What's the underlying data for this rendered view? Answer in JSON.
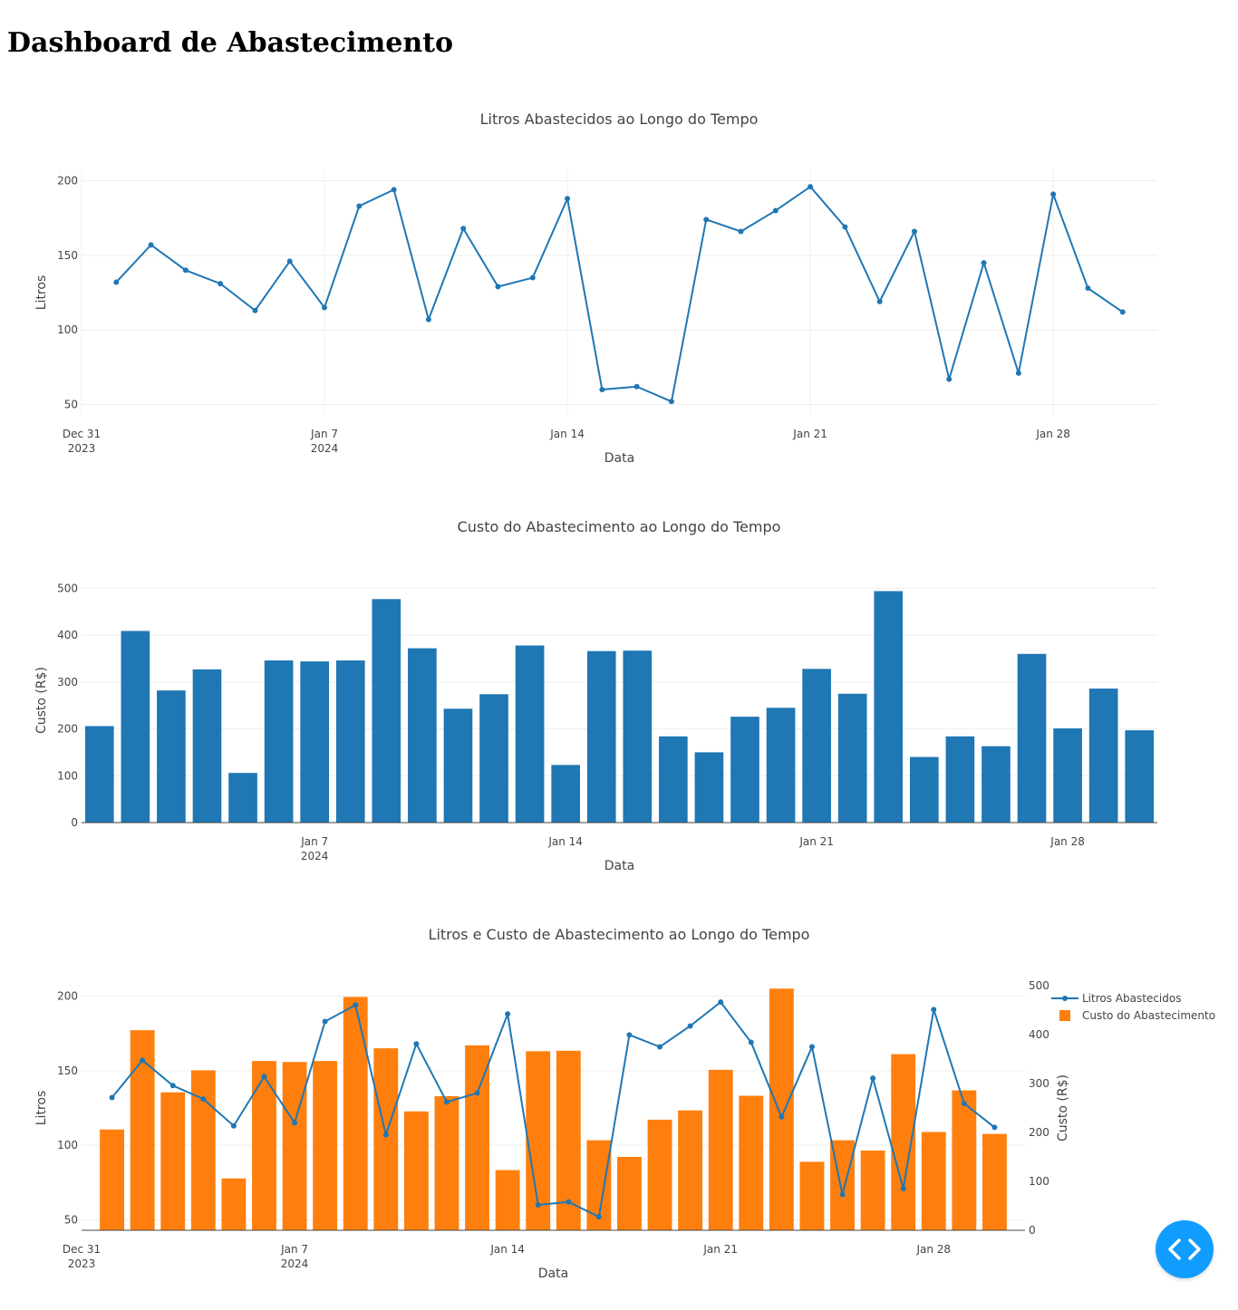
{
  "page": {
    "title": "Dashboard de Abastecimento"
  },
  "colors": {
    "blue": "#1f77b4",
    "orange": "#ff7f0e",
    "fab": "#119dff"
  },
  "dates": [
    "2024-01-01",
    "2024-01-02",
    "2024-01-03",
    "2024-01-04",
    "2024-01-05",
    "2024-01-06",
    "2024-01-07",
    "2024-01-08",
    "2024-01-09",
    "2024-01-10",
    "2024-01-11",
    "2024-01-12",
    "2024-01-13",
    "2024-01-14",
    "2024-01-15",
    "2024-01-16",
    "2024-01-17",
    "2024-01-18",
    "2024-01-19",
    "2024-01-20",
    "2024-01-21",
    "2024-01-22",
    "2024-01-23",
    "2024-01-24",
    "2024-01-25",
    "2024-01-26",
    "2024-01-27",
    "2024-01-28",
    "2024-01-29",
    "2024-01-30"
  ],
  "chart_data": [
    {
      "type": "line",
      "title": "Litros Abastecidos ao Longo do Tempo",
      "xlabel": "Data",
      "ylabel": "Litros",
      "ylim": [
        43,
        207
      ],
      "yticks": [
        50,
        100,
        150,
        200
      ],
      "xlim": [
        "2023-12-31",
        "2024-01-31"
      ],
      "xticks": [
        {
          "date": "2023-12-31",
          "line1": "Dec 31",
          "line2": "2023"
        },
        {
          "date": "2024-01-07",
          "line1": "Jan 7",
          "line2": "2024"
        },
        {
          "date": "2024-01-14",
          "line1": "Jan 14",
          "line2": ""
        },
        {
          "date": "2024-01-21",
          "line1": "Jan 21",
          "line2": ""
        },
        {
          "date": "2024-01-28",
          "line1": "Jan 28",
          "line2": ""
        }
      ],
      "series": [
        {
          "name": "Litros Abastecidos",
          "values": [
            132,
            157,
            140,
            131,
            113,
            146,
            115,
            183,
            194,
            107,
            168,
            129,
            135,
            188,
            60,
            62,
            52,
            174,
            166,
            180,
            196,
            169,
            119,
            166,
            67,
            145,
            71,
            191,
            128,
            112
          ]
        }
      ]
    },
    {
      "type": "bar",
      "title": "Custo do Abastecimento ao Longo do Tempo",
      "xlabel": "Data",
      "ylabel": "Custo (R$)",
      "ylim": [
        0,
        522
      ],
      "yticks": [
        0,
        100,
        200,
        300,
        400,
        500
      ],
      "xlim": [
        "2023-12-31T12:00",
        "2024-01-30T12:00"
      ],
      "xticks": [
        {
          "date": "2024-01-07",
          "line1": "Jan 7",
          "line2": "2024"
        },
        {
          "date": "2024-01-14",
          "line1": "Jan 14",
          "line2": ""
        },
        {
          "date": "2024-01-21",
          "line1": "Jan 21",
          "line2": ""
        },
        {
          "date": "2024-01-28",
          "line1": "Jan 28",
          "line2": ""
        }
      ],
      "series": [
        {
          "name": "Custo do Abastecimento",
          "values": [
            206,
            409,
            282,
            327,
            106,
            346,
            344,
            346,
            477,
            372,
            243,
            274,
            378,
            123,
            366,
            367,
            184,
            150,
            226,
            245,
            328,
            275,
            494,
            140,
            184,
            163,
            360,
            201,
            286,
            197
          ]
        }
      ]
    },
    {
      "type": "combo",
      "title": "Litros e Custo de Abastecimento ao Longo do Tempo",
      "xlabel": "Data",
      "ylabel": "Litros",
      "y2label": "Custo (R$)",
      "ylim": [
        43,
        207
      ],
      "yticks": [
        50,
        100,
        150,
        200
      ],
      "y2lim": [
        0,
        500
      ],
      "y2ticks": [
        0,
        100,
        200,
        300,
        400,
        500
      ],
      "xlim": [
        "2023-12-31",
        "2024-01-31"
      ],
      "xticks": [
        {
          "date": "2023-12-31",
          "line1": "Dec 31",
          "line2": "2023"
        },
        {
          "date": "2024-01-07",
          "line1": "Jan 7",
          "line2": "2024"
        },
        {
          "date": "2024-01-14",
          "line1": "Jan 14",
          "line2": ""
        },
        {
          "date": "2024-01-21",
          "line1": "Jan 21",
          "line2": ""
        },
        {
          "date": "2024-01-28",
          "line1": "Jan 28",
          "line2": ""
        }
      ],
      "legend": [
        "Litros Abastecidos",
        "Custo do Abastecimento"
      ],
      "legend_position": "top-right",
      "series": [
        {
          "name": "Litros Abastecidos",
          "type": "line",
          "axis": "y",
          "values": [
            132,
            157,
            140,
            131,
            113,
            146,
            115,
            183,
            194,
            107,
            168,
            129,
            135,
            188,
            60,
            62,
            52,
            174,
            166,
            180,
            196,
            169,
            119,
            166,
            67,
            145,
            71,
            191,
            128,
            112
          ]
        },
        {
          "name": "Custo do Abastecimento",
          "type": "bar",
          "axis": "y2",
          "values": [
            206,
            409,
            282,
            327,
            106,
            346,
            344,
            346,
            477,
            372,
            243,
            274,
            378,
            123,
            366,
            367,
            184,
            150,
            226,
            245,
            328,
            275,
            494,
            140,
            184,
            163,
            360,
            201,
            286,
            197
          ]
        }
      ]
    }
  ],
  "fab": {
    "icon": "code-icon"
  }
}
